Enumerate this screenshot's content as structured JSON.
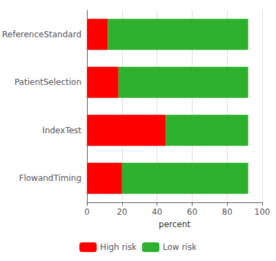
{
  "chart_data": {
    "type": "bar",
    "orientation": "horizontal",
    "stacked": true,
    "categories": [
      "FlowandTiming",
      "IndexTest",
      "PatientSelection",
      "ReferenceStandard"
    ],
    "series": [
      {
        "name": "High risk",
        "color": "#ff0000",
        "values": [
          20,
          45,
          18,
          12
        ]
      },
      {
        "name": "Low risk",
        "color": "#2db02d",
        "values": [
          72,
          47,
          74,
          80
        ]
      }
    ],
    "xlabel": "percent",
    "xlim": [
      0,
      100
    ],
    "xticks": [
      0,
      20,
      40,
      60,
      80,
      100
    ],
    "grid": true,
    "legend": "bottom"
  }
}
